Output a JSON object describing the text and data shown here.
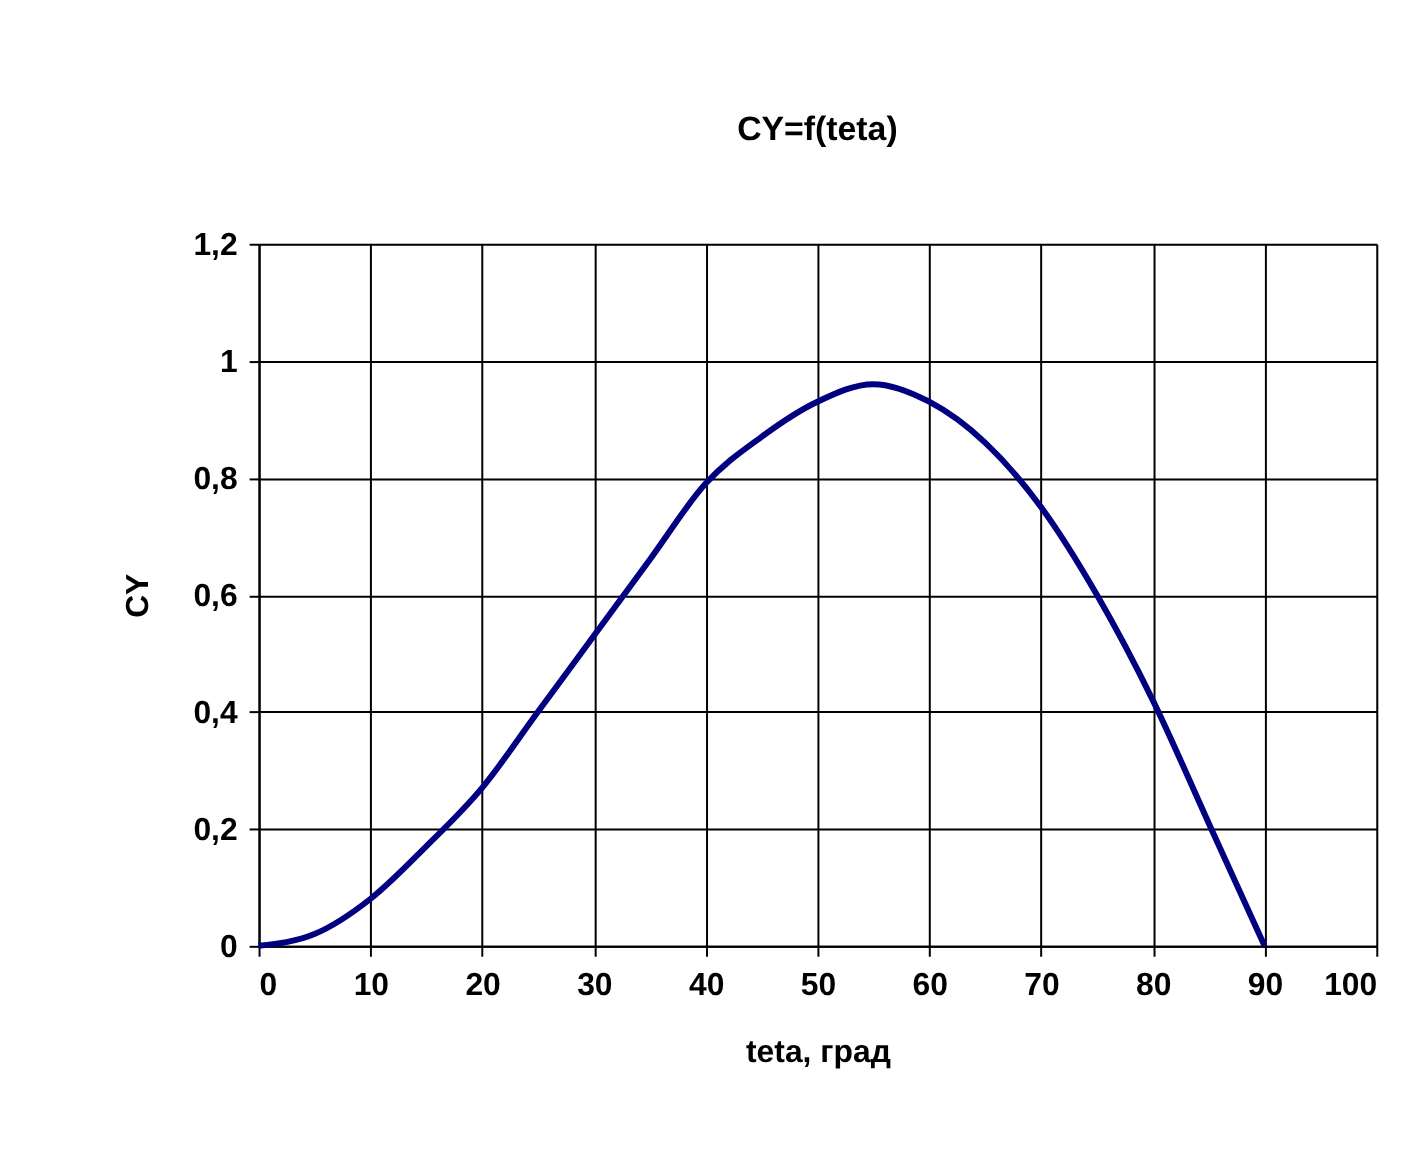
{
  "chart_data": {
    "type": "line",
    "title": "CY=f(teta)",
    "xlabel": "teta, град",
    "ylabel": "CY",
    "x": [
      0,
      5,
      10,
      15,
      20,
      25,
      30,
      35,
      40,
      45,
      50,
      55,
      60,
      65,
      70,
      75,
      80,
      85,
      90
    ],
    "series": [
      {
        "color": "#000080",
        "values": [
          0,
          0.02,
          0.08,
          0.17,
          0.27,
          0.4,
          0.53,
          0.66,
          0.79,
          0.87,
          0.93,
          0.96,
          0.93,
          0.86,
          0.75,
          0.6,
          0.42,
          0.21,
          0
        ]
      }
    ],
    "xlim": [
      0,
      100
    ],
    "xticks": [
      0,
      10,
      20,
      30,
      40,
      50,
      60,
      70,
      80,
      90,
      100
    ],
    "ylim": [
      0,
      1.2
    ],
    "yticks": [
      0,
      {
        "value": 0.2,
        "label": "0,2"
      },
      {
        "value": 0.4,
        "label": "0,4"
      },
      {
        "value": 0.6,
        "label": "0,6"
      },
      {
        "value": 0.8,
        "label": "0,8"
      },
      1,
      {
        "value": 1.2,
        "label": "1,2"
      }
    ],
    "grid": true,
    "marker": "none",
    "line_style": "solid"
  }
}
